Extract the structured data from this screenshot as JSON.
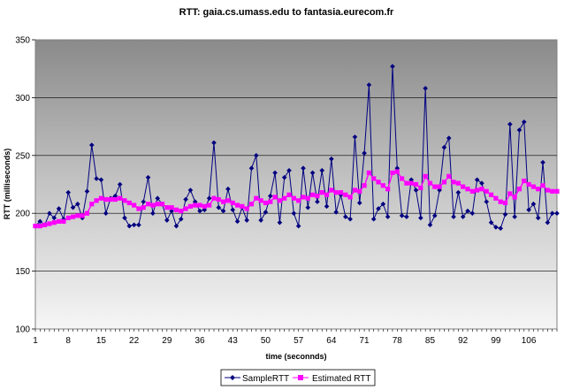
{
  "chart_data": {
    "type": "line",
    "title": "RTT: gaia.cs.umass.edu to fantasia.eurecom.fr",
    "xlabel": "time (seconnds)",
    "ylabel": "RTT (milliseconds)",
    "ylim": [
      100,
      350
    ],
    "yticks": [
      100,
      150,
      200,
      250,
      300,
      350
    ],
    "xlim": [
      1,
      112
    ],
    "xticks": [
      1,
      8,
      15,
      22,
      29,
      36,
      43,
      50,
      57,
      64,
      71,
      78,
      85,
      92,
      99,
      106
    ],
    "grid": "horizontal",
    "legend_position": "bottom",
    "x": [
      1,
      2,
      3,
      4,
      5,
      6,
      7,
      8,
      9,
      10,
      11,
      12,
      13,
      14,
      15,
      16,
      17,
      18,
      19,
      20,
      21,
      22,
      23,
      24,
      25,
      26,
      27,
      28,
      29,
      30,
      31,
      32,
      33,
      34,
      35,
      36,
      37,
      38,
      39,
      40,
      41,
      42,
      43,
      44,
      45,
      46,
      47,
      48,
      49,
      50,
      51,
      52,
      53,
      54,
      55,
      56,
      57,
      58,
      59,
      60,
      61,
      62,
      63,
      64,
      65,
      66,
      67,
      68,
      69,
      70,
      71,
      72,
      73,
      74,
      75,
      76,
      77,
      78,
      79,
      80,
      81,
      82,
      83,
      84,
      85,
      86,
      87,
      88,
      89,
      90,
      91,
      92,
      93,
      94,
      95,
      96,
      97,
      98,
      99,
      100,
      101,
      102,
      103,
      104,
      105,
      106,
      107,
      108,
      109,
      110,
      111,
      112
    ],
    "series": [
      {
        "name": "SampleRTT",
        "color": "#000080",
        "marker": "diamond",
        "values": [
          189,
          193,
          190,
          200,
          196,
          204,
          195,
          218,
          205,
          208,
          196,
          219,
          259,
          230,
          229,
          200,
          213,
          215,
          225,
          196,
          189,
          190,
          190,
          210,
          231,
          200,
          213,
          208,
          194,
          202,
          189,
          195,
          212,
          220,
          210,
          202,
          203,
          213,
          261,
          205,
          202,
          221,
          203,
          193,
          205,
          194,
          239,
          250,
          194,
          201,
          215,
          235,
          192,
          231,
          237,
          200,
          189,
          239,
          205,
          235,
          210,
          237,
          206,
          247,
          201,
          216,
          197,
          195,
          266,
          209,
          252,
          311,
          195,
          204,
          208,
          197,
          327,
          239,
          198,
          197,
          229,
          220,
          196,
          308,
          190,
          198,
          220,
          257,
          265,
          197,
          218,
          197,
          202,
          200,
          229,
          226,
          210,
          192,
          188,
          187,
          199,
          277,
          197,
          272,
          279,
          203,
          208,
          196,
          244,
          192,
          200,
          200
        ]
      },
      {
        "name": "Estimated RTT",
        "color": "#ff00ff",
        "marker": "square",
        "values": [
          189,
          189,
          190,
          191,
          192,
          193,
          193,
          196,
          197,
          198,
          198,
          200,
          208,
          211,
          213,
          212,
          212,
          212,
          213,
          211,
          209,
          207,
          204,
          205,
          208,
          207,
          208,
          208,
          205,
          205,
          203,
          202,
          204,
          206,
          207,
          207,
          206,
          207,
          213,
          212,
          210,
          211,
          209,
          207,
          206,
          204,
          208,
          213,
          211,
          209,
          210,
          214,
          211,
          213,
          216,
          213,
          211,
          214,
          213,
          216,
          215,
          218,
          216,
          220,
          218,
          218,
          216,
          214,
          220,
          219,
          224,
          235,
          230,
          227,
          224,
          221,
          235,
          236,
          230,
          226,
          226,
          225,
          222,
          232,
          226,
          223,
          223,
          227,
          232,
          227,
          226,
          223,
          221,
          219,
          220,
          221,
          219,
          216,
          213,
          210,
          209,
          217,
          214,
          221,
          228,
          225,
          223,
          221,
          224,
          220,
          219,
          219
        ]
      }
    ]
  }
}
